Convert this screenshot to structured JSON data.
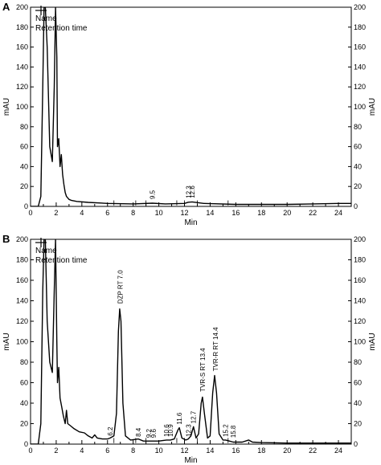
{
  "chart_data": [
    {
      "type": "line",
      "panel_label": "A",
      "legend": [
        "Name",
        "Retention time"
      ],
      "xlabel": "Min",
      "ylabel_left": "mAU",
      "ylabel_right": "mAU",
      "xlim": [
        0,
        25
      ],
      "ylim": [
        0,
        200
      ],
      "xticks": [
        0,
        2,
        4,
        6,
        8,
        10,
        12,
        14,
        16,
        18,
        20,
        22,
        24
      ],
      "yticks": [
        0,
        20,
        40,
        60,
        80,
        100,
        120,
        140,
        160,
        180,
        200
      ],
      "annotations": [
        {
          "text": "9.5",
          "x": 9.5,
          "y": 4
        },
        {
          "text": "12.3",
          "x": 12.3,
          "y": 5
        },
        {
          "text": "12.6",
          "x": 12.6,
          "y": 5
        }
      ],
      "series": [
        {
          "values": [
            [
              0,
              0
            ],
            [
              0.6,
              0
            ],
            [
              0.8,
              10
            ],
            [
              0.95,
              120
            ],
            [
              1.05,
              200
            ],
            [
              1.15,
              200
            ],
            [
              1.3,
              160
            ],
            [
              1.5,
              60
            ],
            [
              1.7,
              45
            ],
            [
              1.85,
              120
            ],
            [
              1.95,
              200
            ],
            [
              2.05,
              150
            ],
            [
              2.1,
              60
            ],
            [
              2.2,
              68
            ],
            [
              2.3,
              40
            ],
            [
              2.4,
              52
            ],
            [
              2.5,
              32
            ],
            [
              2.6,
              22
            ],
            [
              2.7,
              14
            ],
            [
              2.8,
              10
            ],
            [
              3.0,
              7
            ],
            [
              3.2,
              6
            ],
            [
              3.6,
              5
            ],
            [
              4.5,
              4
            ],
            [
              6,
              3
            ],
            [
              8,
              2.5
            ],
            [
              9.5,
              3.2
            ],
            [
              10.5,
              2.5
            ],
            [
              12,
              3
            ],
            [
              12.3,
              4.2
            ],
            [
              12.6,
              4.5
            ],
            [
              13.5,
              3
            ],
            [
              16,
              2
            ],
            [
              20,
              2
            ],
            [
              22,
              2.5
            ],
            [
              24,
              3
            ],
            [
              25,
              3
            ]
          ]
        }
      ]
    },
    {
      "type": "line",
      "panel_label": "B",
      "legend": [
        "Name",
        "Retention time"
      ],
      "xlabel": "Min",
      "ylabel_left": "mAU",
      "ylabel_right": "mAU",
      "xlim": [
        0,
        25
      ],
      "ylim": [
        0,
        200
      ],
      "xticks": [
        0,
        2,
        4,
        6,
        8,
        10,
        12,
        14,
        16,
        18,
        20,
        22,
        24
      ],
      "yticks": [
        0,
        20,
        40,
        60,
        80,
        100,
        120,
        140,
        160,
        180,
        200
      ],
      "annotations": [
        {
          "text": "DZP RT 7.0",
          "x": 7.0,
          "y": 134
        },
        {
          "text": "6.2",
          "x": 6.2,
          "y": 5
        },
        {
          "text": "8.4",
          "x": 8.4,
          "y": 4
        },
        {
          "text": "9.2",
          "x": 9.2,
          "y": 3
        },
        {
          "text": "9.6",
          "x": 9.6,
          "y": 3
        },
        {
          "text": "10.6",
          "x": 10.6,
          "y": 4
        },
        {
          "text": "10.9",
          "x": 10.9,
          "y": 4
        },
        {
          "text": "11.6",
          "x": 11.6,
          "y": 16
        },
        {
          "text": "12.3",
          "x": 12.3,
          "y": 4
        },
        {
          "text": "12.7",
          "x": 12.7,
          "y": 17
        },
        {
          "text": "TVR-S RT 13.4",
          "x": 13.4,
          "y": 48
        },
        {
          "text": "TVR-R RT 14.4",
          "x": 14.4,
          "y": 68
        },
        {
          "text": "15.2",
          "x": 15.2,
          "y": 4
        },
        {
          "text": "15.8",
          "x": 15.8,
          "y": 3
        }
      ],
      "series": [
        {
          "values": [
            [
              0,
              0
            ],
            [
              0.6,
              0
            ],
            [
              0.8,
              20
            ],
            [
              0.95,
              150
            ],
            [
              1.05,
              200
            ],
            [
              1.15,
              200
            ],
            [
              1.3,
              120
            ],
            [
              1.5,
              80
            ],
            [
              1.7,
              70
            ],
            [
              1.85,
              150
            ],
            [
              1.95,
              200
            ],
            [
              2.05,
              100
            ],
            [
              2.1,
              60
            ],
            [
              2.2,
              75
            ],
            [
              2.3,
              45
            ],
            [
              2.45,
              35
            ],
            [
              2.55,
              28
            ],
            [
              2.7,
              20
            ],
            [
              2.8,
              33
            ],
            [
              2.9,
              20
            ],
            [
              3.1,
              18
            ],
            [
              3.4,
              15
            ],
            [
              3.8,
              12
            ],
            [
              4.2,
              11
            ],
            [
              4.5,
              8
            ],
            [
              4.8,
              6
            ],
            [
              5.0,
              9
            ],
            [
              5.2,
              6
            ],
            [
              5.6,
              5
            ],
            [
              6.0,
              5
            ],
            [
              6.2,
              6
            ],
            [
              6.5,
              8
            ],
            [
              6.7,
              30
            ],
            [
              6.85,
              110
            ],
            [
              6.95,
              132
            ],
            [
              7.05,
              120
            ],
            [
              7.2,
              40
            ],
            [
              7.4,
              8
            ],
            [
              7.8,
              4
            ],
            [
              8.4,
              5
            ],
            [
              8.8,
              3
            ],
            [
              9.2,
              3
            ],
            [
              9.6,
              3
            ],
            [
              10.0,
              3
            ],
            [
              10.6,
              4
            ],
            [
              10.9,
              4
            ],
            [
              11.2,
              5
            ],
            [
              11.5,
              14
            ],
            [
              11.6,
              16
            ],
            [
              11.8,
              6
            ],
            [
              12.1,
              4
            ],
            [
              12.3,
              5
            ],
            [
              12.5,
              8
            ],
            [
              12.7,
              17
            ],
            [
              12.9,
              6
            ],
            [
              13.1,
              10
            ],
            [
              13.3,
              40
            ],
            [
              13.4,
              46
            ],
            [
              13.55,
              30
            ],
            [
              13.8,
              6
            ],
            [
              14.0,
              8
            ],
            [
              14.2,
              50
            ],
            [
              14.35,
              67
            ],
            [
              14.5,
              50
            ],
            [
              14.7,
              10
            ],
            [
              15.0,
              4
            ],
            [
              15.2,
              4
            ],
            [
              15.5,
              3
            ],
            [
              15.8,
              2
            ],
            [
              16.5,
              2
            ],
            [
              17.0,
              4
            ],
            [
              17.3,
              2
            ],
            [
              18,
              1.5
            ],
            [
              20,
              1
            ],
            [
              22,
              1
            ],
            [
              24,
              1
            ],
            [
              25,
              1
            ]
          ]
        }
      ]
    }
  ]
}
